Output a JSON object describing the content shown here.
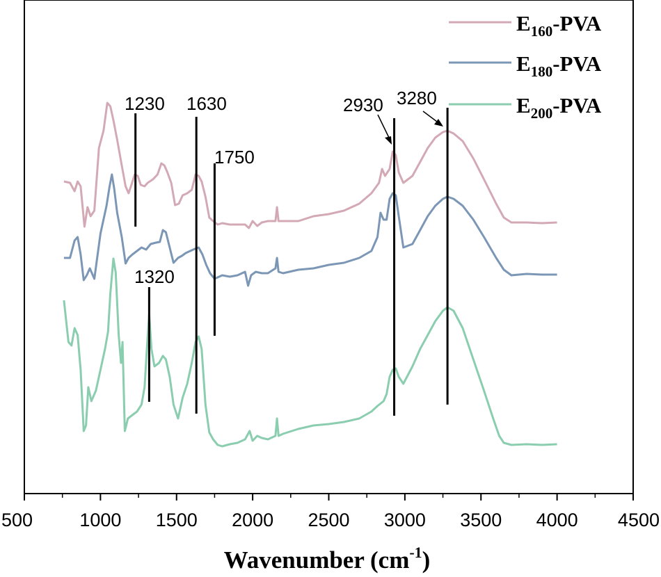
{
  "chart_data": {
    "type": "line",
    "title": "",
    "xlabel": "Wavenumber (cm",
    "xlabel_sup": "-1",
    "xlabel_close": ")",
    "ylabel": "",
    "xlim": [
      500,
      4500
    ],
    "xticks": [
      "500",
      "1000",
      "1500",
      "2000",
      "2500",
      "3000",
      "3500",
      "4000",
      "4500"
    ],
    "legend_position": "top-right",
    "series": [
      {
        "name": "E160-PVA",
        "label_main": "E",
        "label_sub": "160",
        "label_rest": "-PVA",
        "color": "#d4a9b6",
        "baseline": 0,
        "points": [
          [
            760,
            -62
          ],
          [
            800,
            -60
          ],
          [
            830,
            -48
          ],
          [
            850,
            -62
          ],
          [
            870,
            -55
          ],
          [
            895,
            3
          ],
          [
            915,
            -25
          ],
          [
            935,
            -12
          ],
          [
            960,
            -20
          ],
          [
            990,
            -110
          ],
          [
            1020,
            -135
          ],
          [
            1045,
            -175
          ],
          [
            1065,
            -170
          ],
          [
            1085,
            -150
          ],
          [
            1110,
            -122
          ],
          [
            1140,
            -85
          ],
          [
            1165,
            -55
          ],
          [
            1185,
            -45
          ],
          [
            1205,
            -58
          ],
          [
            1225,
            -72
          ],
          [
            1245,
            -70
          ],
          [
            1265,
            -57
          ],
          [
            1290,
            -55
          ],
          [
            1310,
            -60
          ],
          [
            1345,
            -65
          ],
          [
            1375,
            -72
          ],
          [
            1400,
            -88
          ],
          [
            1420,
            -85
          ],
          [
            1440,
            -75
          ],
          [
            1465,
            -60
          ],
          [
            1490,
            -28
          ],
          [
            1515,
            -30
          ],
          [
            1540,
            -42
          ],
          [
            1570,
            -45
          ],
          [
            1600,
            -50
          ],
          [
            1625,
            -72
          ],
          [
            1645,
            -70
          ],
          [
            1665,
            -62
          ],
          [
            1690,
            -40
          ],
          [
            1715,
            -10
          ],
          [
            1740,
            -5
          ],
          [
            1770,
            0
          ],
          [
            1800,
            -2
          ],
          [
            1850,
            0
          ],
          [
            1900,
            0
          ],
          [
            1950,
            0
          ],
          [
            1975,
            5
          ],
          [
            2000,
            -5
          ],
          [
            2030,
            2
          ],
          [
            2060,
            -3
          ],
          [
            2100,
            -5
          ],
          [
            2150,
            -5
          ],
          [
            2160,
            -25
          ],
          [
            2170,
            -5
          ],
          [
            2200,
            -5
          ],
          [
            2250,
            -5
          ],
          [
            2300,
            -5
          ],
          [
            2400,
            -12
          ],
          [
            2500,
            -15
          ],
          [
            2600,
            -20
          ],
          [
            2700,
            -30
          ],
          [
            2780,
            -45
          ],
          [
            2830,
            -60
          ],
          [
            2850,
            -80
          ],
          [
            2870,
            -70
          ],
          [
            2900,
            -80
          ],
          [
            2920,
            -105
          ],
          [
            2940,
            -100
          ],
          [
            2960,
            -75
          ],
          [
            2990,
            -60
          ],
          [
            3050,
            -70
          ],
          [
            3100,
            -90
          ],
          [
            3150,
            -110
          ],
          [
            3200,
            -125
          ],
          [
            3250,
            -133
          ],
          [
            3280,
            -135
          ],
          [
            3320,
            -131
          ],
          [
            3380,
            -120
          ],
          [
            3450,
            -95
          ],
          [
            3520,
            -65
          ],
          [
            3600,
            -30
          ],
          [
            3650,
            -10
          ],
          [
            3700,
            -3
          ],
          [
            3800,
            -3
          ],
          [
            3900,
            -2
          ],
          [
            4000,
            -3
          ]
        ]
      },
      {
        "name": "E180-PVA",
        "label_main": "E",
        "label_sub": "180",
        "label_rest": "-PVA",
        "color": "#7b97b5",
        "baseline": 0,
        "points": [
          [
            760,
            -25
          ],
          [
            800,
            -25
          ],
          [
            830,
            -50
          ],
          [
            850,
            -55
          ],
          [
            870,
            -30
          ],
          [
            890,
            7
          ],
          [
            910,
            0
          ],
          [
            930,
            -10
          ],
          [
            960,
            5
          ],
          [
            1000,
            -60
          ],
          [
            1040,
            -100
          ],
          [
            1060,
            -128
          ],
          [
            1075,
            -145
          ],
          [
            1090,
            -125
          ],
          [
            1110,
            -90
          ],
          [
            1140,
            -55
          ],
          [
            1165,
            -17
          ],
          [
            1185,
            -25
          ],
          [
            1210,
            -30
          ],
          [
            1240,
            -35
          ],
          [
            1270,
            -40
          ],
          [
            1300,
            -37
          ],
          [
            1330,
            -45
          ],
          [
            1365,
            -47
          ],
          [
            1390,
            -48
          ],
          [
            1410,
            -65
          ],
          [
            1430,
            -62
          ],
          [
            1455,
            -40
          ],
          [
            1480,
            -18
          ],
          [
            1510,
            -25
          ],
          [
            1535,
            -28
          ],
          [
            1560,
            -32
          ],
          [
            1590,
            -35
          ],
          [
            1620,
            -38
          ],
          [
            1645,
            -40
          ],
          [
            1670,
            -30
          ],
          [
            1695,
            -15
          ],
          [
            1720,
            -3
          ],
          [
            1750,
            5
          ],
          [
            1800,
            0
          ],
          [
            1850,
            2
          ],
          [
            1900,
            0
          ],
          [
            1950,
            -5
          ],
          [
            1970,
            15
          ],
          [
            1990,
            0
          ],
          [
            2020,
            -5
          ],
          [
            2060,
            -3
          ],
          [
            2100,
            -3
          ],
          [
            2150,
            -10
          ],
          [
            2160,
            -25
          ],
          [
            2170,
            -5
          ],
          [
            2200,
            -3
          ],
          [
            2300,
            -8
          ],
          [
            2400,
            -10
          ],
          [
            2500,
            -15
          ],
          [
            2600,
            -18
          ],
          [
            2700,
            -25
          ],
          [
            2780,
            -35
          ],
          [
            2820,
            -55
          ],
          [
            2840,
            -90
          ],
          [
            2860,
            -80
          ],
          [
            2880,
            -80
          ],
          [
            2900,
            -110
          ],
          [
            2920,
            -118
          ],
          [
            2940,
            -115
          ],
          [
            2960,
            -85
          ],
          [
            2990,
            -40
          ],
          [
            3050,
            -45
          ],
          [
            3100,
            -65
          ],
          [
            3150,
            -85
          ],
          [
            3200,
            -100
          ],
          [
            3250,
            -110
          ],
          [
            3280,
            -113
          ],
          [
            3320,
            -110
          ],
          [
            3380,
            -100
          ],
          [
            3450,
            -80
          ],
          [
            3520,
            -55
          ],
          [
            3600,
            -25
          ],
          [
            3650,
            -8
          ],
          [
            3700,
            0
          ],
          [
            3800,
            -2
          ],
          [
            3900,
            -1
          ],
          [
            4000,
            -1
          ]
        ]
      },
      {
        "name": "E200-PVA",
        "label_main": "E",
        "label_sub": "200",
        "label_rest": "-PVA",
        "color": "#8bcdaf",
        "baseline": 0,
        "points": [
          [
            760,
            -210
          ],
          [
            790,
            -150
          ],
          [
            810,
            -145
          ],
          [
            830,
            -170
          ],
          [
            850,
            -160
          ],
          [
            870,
            -110
          ],
          [
            890,
            -22
          ],
          [
            905,
            -30
          ],
          [
            920,
            -85
          ],
          [
            940,
            -65
          ],
          [
            970,
            -80
          ],
          [
            1000,
            -110
          ],
          [
            1030,
            -140
          ],
          [
            1050,
            -165
          ],
          [
            1065,
            -220
          ],
          [
            1085,
            -270
          ],
          [
            1100,
            -250
          ],
          [
            1120,
            -160
          ],
          [
            1135,
            -120
          ],
          [
            1145,
            -150
          ],
          [
            1160,
            -22
          ],
          [
            1180,
            -40
          ],
          [
            1210,
            -45
          ],
          [
            1240,
            -50
          ],
          [
            1270,
            -60
          ],
          [
            1290,
            -85
          ],
          [
            1305,
            -140
          ],
          [
            1320,
            -190
          ],
          [
            1335,
            -140
          ],
          [
            1355,
            -115
          ],
          [
            1385,
            -120
          ],
          [
            1410,
            -130
          ],
          [
            1430,
            -125
          ],
          [
            1455,
            -100
          ],
          [
            1480,
            -60
          ],
          [
            1510,
            -40
          ],
          [
            1540,
            -70
          ],
          [
            1570,
            -90
          ],
          [
            1600,
            -120
          ],
          [
            1625,
            -150
          ],
          [
            1645,
            -158
          ],
          [
            1665,
            -140
          ],
          [
            1690,
            -60
          ],
          [
            1715,
            -20
          ],
          [
            1740,
            -10
          ],
          [
            1770,
            -2
          ],
          [
            1800,
            0
          ],
          [
            1850,
            -3
          ],
          [
            1900,
            -5
          ],
          [
            1950,
            -10
          ],
          [
            1980,
            -22
          ],
          [
            2000,
            -8
          ],
          [
            2030,
            -15
          ],
          [
            2060,
            -12
          ],
          [
            2100,
            -10
          ],
          [
            2150,
            -15
          ],
          [
            2160,
            -40
          ],
          [
            2170,
            -15
          ],
          [
            2200,
            -18
          ],
          [
            2300,
            -25
          ],
          [
            2400,
            -30
          ],
          [
            2500,
            -32
          ],
          [
            2600,
            -35
          ],
          [
            2700,
            -40
          ],
          [
            2780,
            -50
          ],
          [
            2820,
            -58
          ],
          [
            2860,
            -65
          ],
          [
            2880,
            -75
          ],
          [
            2900,
            -100
          ],
          [
            2920,
            -110
          ],
          [
            2940,
            -112
          ],
          [
            2960,
            -100
          ],
          [
            2990,
            -90
          ],
          [
            3050,
            -115
          ],
          [
            3100,
            -140
          ],
          [
            3150,
            -160
          ],
          [
            3200,
            -180
          ],
          [
            3250,
            -195
          ],
          [
            3280,
            -200
          ],
          [
            3320,
            -195
          ],
          [
            3380,
            -170
          ],
          [
            3450,
            -125
          ],
          [
            3520,
            -80
          ],
          [
            3580,
            -40
          ],
          [
            3620,
            -15
          ],
          [
            3650,
            -5
          ],
          [
            3700,
            -2
          ],
          [
            3800,
            -3
          ],
          [
            3900,
            -2
          ],
          [
            4000,
            -3
          ]
        ]
      }
    ],
    "annotations": [
      {
        "label": "1230",
        "x": 1230
      },
      {
        "label": "1630",
        "x": 1630
      },
      {
        "label": "1750",
        "x": 1750
      },
      {
        "label": "1320",
        "x": 1320
      },
      {
        "label": "2930",
        "x": 2930
      },
      {
        "label": "3280",
        "x": 3280
      }
    ]
  }
}
